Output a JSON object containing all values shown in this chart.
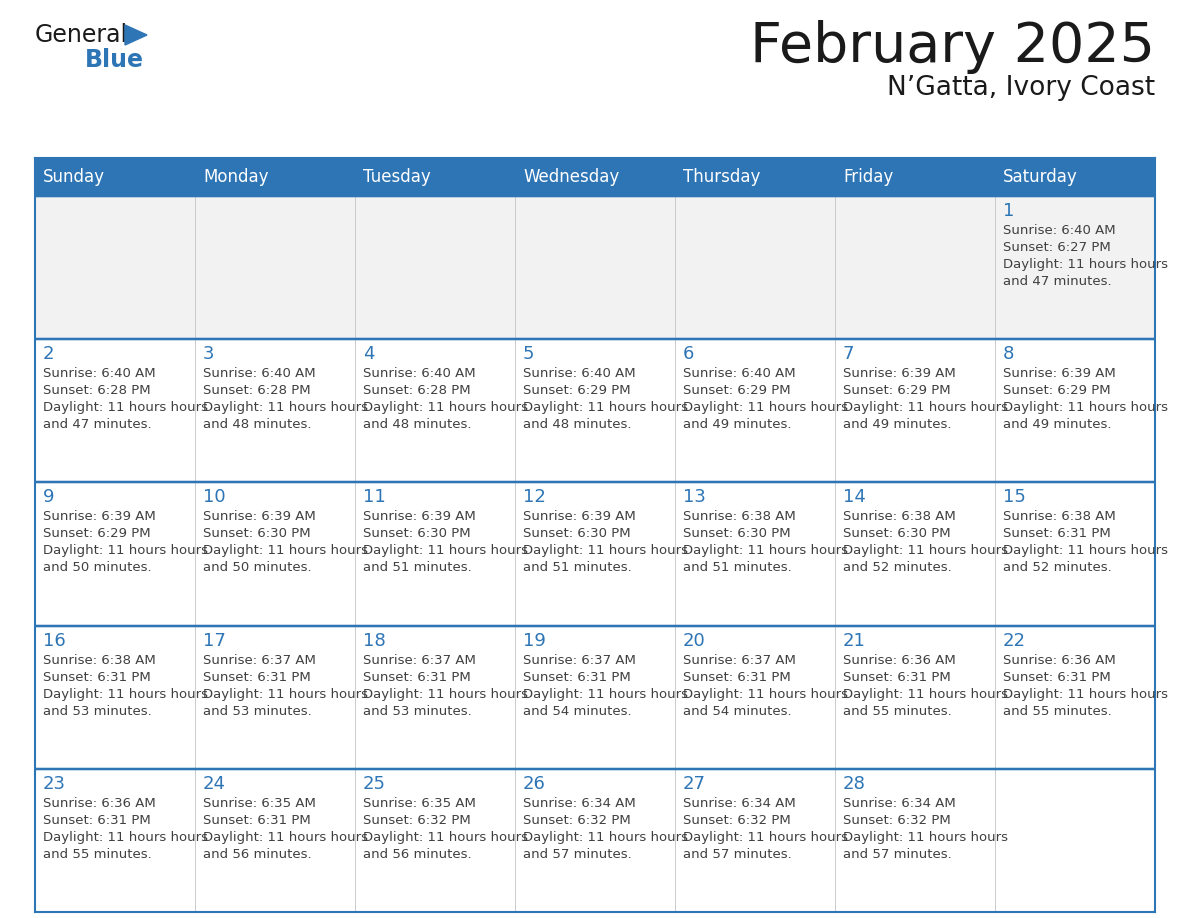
{
  "title": "February 2025",
  "subtitle": "N’Gatta, Ivory Coast",
  "header_bg_color": "#2E75B6",
  "header_text_color": "#FFFFFF",
  "cell_bg_white": "#FFFFFF",
  "cell_bg_gray": "#F2F2F2",
  "cell_border_color": "#2E75B6",
  "day_number_color": "#2E75B6",
  "cell_text_color": "#404040",
  "days_of_week": [
    "Sunday",
    "Monday",
    "Tuesday",
    "Wednesday",
    "Thursday",
    "Friday",
    "Saturday"
  ],
  "num_rows": 5,
  "calendar_data": [
    [
      null,
      null,
      null,
      null,
      null,
      null,
      {
        "day": 1,
        "sunrise": "6:40 AM",
        "sunset": "6:27 PM",
        "daylight": "11 hours and 47 minutes."
      }
    ],
    [
      {
        "day": 2,
        "sunrise": "6:40 AM",
        "sunset": "6:28 PM",
        "daylight": "11 hours and 47 minutes."
      },
      {
        "day": 3,
        "sunrise": "6:40 AM",
        "sunset": "6:28 PM",
        "daylight": "11 hours and 48 minutes."
      },
      {
        "day": 4,
        "sunrise": "6:40 AM",
        "sunset": "6:28 PM",
        "daylight": "11 hours and 48 minutes."
      },
      {
        "day": 5,
        "sunrise": "6:40 AM",
        "sunset": "6:29 PM",
        "daylight": "11 hours and 48 minutes."
      },
      {
        "day": 6,
        "sunrise": "6:40 AM",
        "sunset": "6:29 PM",
        "daylight": "11 hours and 49 minutes."
      },
      {
        "day": 7,
        "sunrise": "6:39 AM",
        "sunset": "6:29 PM",
        "daylight": "11 hours and 49 minutes."
      },
      {
        "day": 8,
        "sunrise": "6:39 AM",
        "sunset": "6:29 PM",
        "daylight": "11 hours and 49 minutes."
      }
    ],
    [
      {
        "day": 9,
        "sunrise": "6:39 AM",
        "sunset": "6:29 PM",
        "daylight": "11 hours and 50 minutes."
      },
      {
        "day": 10,
        "sunrise": "6:39 AM",
        "sunset": "6:30 PM",
        "daylight": "11 hours and 50 minutes."
      },
      {
        "day": 11,
        "sunrise": "6:39 AM",
        "sunset": "6:30 PM",
        "daylight": "11 hours and 51 minutes."
      },
      {
        "day": 12,
        "sunrise": "6:39 AM",
        "sunset": "6:30 PM",
        "daylight": "11 hours and 51 minutes."
      },
      {
        "day": 13,
        "sunrise": "6:38 AM",
        "sunset": "6:30 PM",
        "daylight": "11 hours and 51 minutes."
      },
      {
        "day": 14,
        "sunrise": "6:38 AM",
        "sunset": "6:30 PM",
        "daylight": "11 hours and 52 minutes."
      },
      {
        "day": 15,
        "sunrise": "6:38 AM",
        "sunset": "6:31 PM",
        "daylight": "11 hours and 52 minutes."
      }
    ],
    [
      {
        "day": 16,
        "sunrise": "6:38 AM",
        "sunset": "6:31 PM",
        "daylight": "11 hours and 53 minutes."
      },
      {
        "day": 17,
        "sunrise": "6:37 AM",
        "sunset": "6:31 PM",
        "daylight": "11 hours and 53 minutes."
      },
      {
        "day": 18,
        "sunrise": "6:37 AM",
        "sunset": "6:31 PM",
        "daylight": "11 hours and 53 minutes."
      },
      {
        "day": 19,
        "sunrise": "6:37 AM",
        "sunset": "6:31 PM",
        "daylight": "11 hours and 54 minutes."
      },
      {
        "day": 20,
        "sunrise": "6:37 AM",
        "sunset": "6:31 PM",
        "daylight": "11 hours and 54 minutes."
      },
      {
        "day": 21,
        "sunrise": "6:36 AM",
        "sunset": "6:31 PM",
        "daylight": "11 hours and 55 minutes."
      },
      {
        "day": 22,
        "sunrise": "6:36 AM",
        "sunset": "6:31 PM",
        "daylight": "11 hours and 55 minutes."
      }
    ],
    [
      {
        "day": 23,
        "sunrise": "6:36 AM",
        "sunset": "6:31 PM",
        "daylight": "11 hours and 55 minutes."
      },
      {
        "day": 24,
        "sunrise": "6:35 AM",
        "sunset": "6:31 PM",
        "daylight": "11 hours and 56 minutes."
      },
      {
        "day": 25,
        "sunrise": "6:35 AM",
        "sunset": "6:32 PM",
        "daylight": "11 hours and 56 minutes."
      },
      {
        "day": 26,
        "sunrise": "6:34 AM",
        "sunset": "6:32 PM",
        "daylight": "11 hours and 57 minutes."
      },
      {
        "day": 27,
        "sunrise": "6:34 AM",
        "sunset": "6:32 PM",
        "daylight": "11 hours and 57 minutes."
      },
      {
        "day": 28,
        "sunrise": "6:34 AM",
        "sunset": "6:32 PM",
        "daylight": "11 hours and 57 minutes."
      },
      null
    ]
  ]
}
